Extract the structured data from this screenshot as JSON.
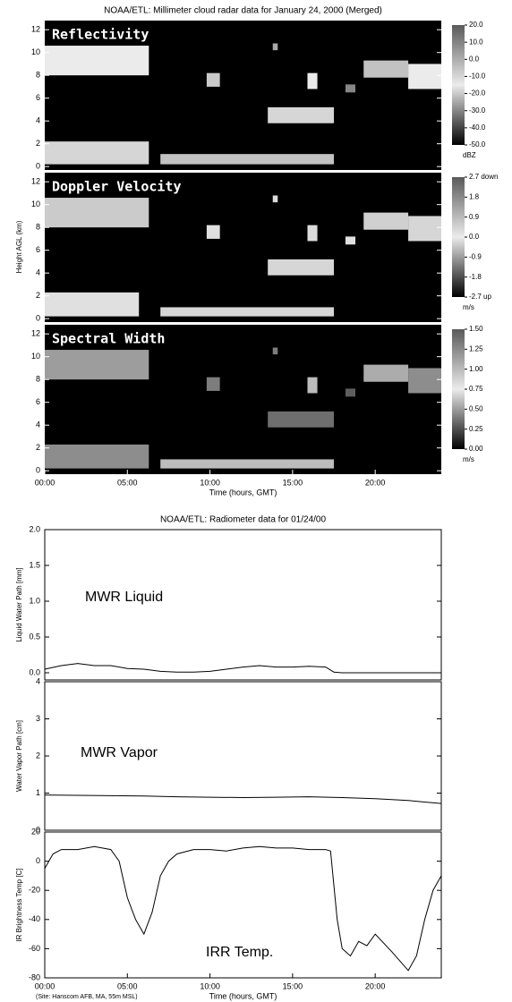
{
  "chart_data": [
    {
      "type": "radar",
      "title": "NOAA/ETL: Millimeter cloud radar data for January 24, 2000 (Merged)",
      "ylabel": "Height AGL (km)",
      "label": "Reflectivity",
      "xlim": [
        0,
        24
      ],
      "ylim": [
        -0.3,
        12.8
      ],
      "yticks": [
        0,
        2,
        4,
        6,
        8,
        10,
        12
      ],
      "colorbar": {
        "lim": [
          -50,
          20
        ],
        "unit": "dBZ",
        "ticks": [
          {
            "value": 20,
            "label": "20.0"
          },
          {
            "value": 10,
            "label": "10.0"
          },
          {
            "value": 0,
            "label": "0.0"
          },
          {
            "value": -10,
            "label": "-10.0"
          },
          {
            "value": -20,
            "label": "-20.0"
          },
          {
            "value": -30,
            "label": "-30.0"
          },
          {
            "value": -40,
            "label": "-40.0"
          },
          {
            "value": -50,
            "label": "-50.0"
          }
        ]
      },
      "regions": [
        {
          "x": [
            0,
            6.3
          ],
          "y": [
            8.0,
            10.6
          ],
          "value": -15
        },
        {
          "x": [
            0,
            6.3
          ],
          "y": [
            0.2,
            2.2
          ],
          "value": -10
        },
        {
          "x": [
            7.0,
            17.5
          ],
          "y": [
            0.2,
            1.1
          ],
          "value": -5
        },
        {
          "x": [
            9.8,
            10.6
          ],
          "y": [
            7.0,
            8.2
          ],
          "value": -20
        },
        {
          "x": [
            13.8,
            14.1
          ],
          "y": [
            10.2,
            10.8
          ],
          "value": -25
        },
        {
          "x": [
            15.9,
            16.5
          ],
          "y": [
            6.8,
            8.2
          ],
          "value": -15
        },
        {
          "x": [
            13.5,
            17.5
          ],
          "y": [
            3.8,
            5.2
          ],
          "value": -10
        },
        {
          "x": [
            18.2,
            18.8
          ],
          "y": [
            6.5,
            7.2
          ],
          "value": -30
        },
        {
          "x": [
            19.3,
            22.0
          ],
          "y": [
            7.8,
            9.3
          ],
          "value": -5
        },
        {
          "x": [
            22.0,
            24.0
          ],
          "y": [
            6.8,
            9.0
          ],
          "value": -15
        }
      ]
    },
    {
      "type": "radar",
      "label": "Doppler Velocity",
      "xlim": [
        0,
        24
      ],
      "ylim": [
        -0.3,
        12.8
      ],
      "yticks": [
        0,
        2,
        4,
        6,
        8,
        10,
        12
      ],
      "colorbar": {
        "lim": [
          -2.7,
          2.7
        ],
        "unit": "m/s",
        "ticks": [
          {
            "value": 2.7,
            "label": "2.7 down"
          },
          {
            "value": 1.8,
            "label": "1.8"
          },
          {
            "value": 0.9,
            "label": "0.9"
          },
          {
            "value": 0,
            "label": "0.0"
          },
          {
            "value": -0.9,
            "label": "-0.9"
          },
          {
            "value": -1.8,
            "label": "-1.8"
          },
          {
            "value": -2.7,
            "label": "-2.7 up"
          }
        ]
      },
      "regions": [
        {
          "x": [
            0,
            6.3
          ],
          "y": [
            8.0,
            10.6
          ],
          "value": 0.6
        },
        {
          "x": [
            0,
            5.7
          ],
          "y": [
            0.2,
            2.3
          ],
          "value": 0.2
        },
        {
          "x": [
            7.0,
            17.5
          ],
          "y": [
            0.2,
            1.0
          ],
          "value": 0.4
        },
        {
          "x": [
            9.8,
            10.6
          ],
          "y": [
            7.0,
            8.2
          ],
          "value": 0.2
        },
        {
          "x": [
            13.8,
            14.1
          ],
          "y": [
            10.2,
            10.8
          ],
          "value": 0.3
        },
        {
          "x": [
            15.9,
            16.5
          ],
          "y": [
            6.8,
            8.2
          ],
          "value": 0.3
        },
        {
          "x": [
            13.5,
            17.5
          ],
          "y": [
            3.8,
            5.2
          ],
          "value": 0.4
        },
        {
          "x": [
            18.2,
            18.8
          ],
          "y": [
            6.5,
            7.2
          ],
          "value": 0.2
        },
        {
          "x": [
            19.3,
            22.0
          ],
          "y": [
            7.8,
            9.3
          ],
          "value": 0.5
        },
        {
          "x": [
            22.0,
            24.0
          ],
          "y": [
            6.8,
            9.0
          ],
          "value": 0.4
        }
      ]
    },
    {
      "type": "radar",
      "label": "Spectral Width",
      "xlabel": "Time (hours, GMT)",
      "xlim": [
        0,
        24
      ],
      "ylim": [
        -0.3,
        12.8
      ],
      "yticks": [
        0,
        2,
        4,
        6,
        8,
        10,
        12
      ],
      "xticks": [
        {
          "value": 0,
          "label": "00:00"
        },
        {
          "value": 5,
          "label": "05:00"
        },
        {
          "value": 10,
          "label": "10:00"
        },
        {
          "value": 15,
          "label": "15:00"
        },
        {
          "value": 20,
          "label": "20:00"
        }
      ],
      "colorbar": {
        "lim": [
          0,
          1.5
        ],
        "unit": "m/s",
        "ticks": [
          {
            "value": 1.5,
            "label": "1.50"
          },
          {
            "value": 1.25,
            "label": "1.25"
          },
          {
            "value": 1.0,
            "label": "1.00"
          },
          {
            "value": 0.75,
            "label": "0.75"
          },
          {
            "value": 0.5,
            "label": "0.50"
          },
          {
            "value": 0.25,
            "label": "0.25"
          },
          {
            "value": 0,
            "label": "0.00"
          }
        ]
      },
      "regions": [
        {
          "x": [
            0,
            6.3
          ],
          "y": [
            8.0,
            10.6
          ],
          "value": 0.5
        },
        {
          "x": [
            0,
            6.3
          ],
          "y": [
            0.2,
            2.3
          ],
          "value": 0.45
        },
        {
          "x": [
            7.0,
            17.5
          ],
          "y": [
            0.2,
            1.0
          ],
          "value": 0.6
        },
        {
          "x": [
            9.8,
            10.6
          ],
          "y": [
            7.0,
            8.2
          ],
          "value": 0.4
        },
        {
          "x": [
            13.8,
            14.1
          ],
          "y": [
            10.2,
            10.8
          ],
          "value": 0.4
        },
        {
          "x": [
            15.9,
            16.5
          ],
          "y": [
            6.8,
            8.2
          ],
          "value": 0.6
        },
        {
          "x": [
            13.5,
            17.5
          ],
          "y": [
            3.8,
            5.2
          ],
          "value": 0.35
        },
        {
          "x": [
            18.2,
            18.8
          ],
          "y": [
            6.5,
            7.2
          ],
          "value": 0.3
        },
        {
          "x": [
            19.3,
            22.0
          ],
          "y": [
            7.8,
            9.3
          ],
          "value": 0.55
        },
        {
          "x": [
            22.0,
            24.0
          ],
          "y": [
            6.8,
            9.0
          ],
          "value": 0.45
        }
      ]
    },
    {
      "type": "line",
      "title": "NOAA/ETL: Radiometer data for 01/24/00",
      "ylabel": "Liquid Water Path [mm]",
      "annotation": "MWR Liquid",
      "xlim": [
        0,
        24
      ],
      "ylim": [
        -0.1,
        2.0
      ],
      "yticks": [
        {
          "value": 0,
          "label": "0.0"
        },
        {
          "value": 0.5,
          "label": "0.5"
        },
        {
          "value": 1.0,
          "label": "1.0"
        },
        {
          "value": 1.5,
          "label": "1.5"
        },
        {
          "value": 2.0,
          "label": "2.0"
        }
      ],
      "x": [
        0,
        1,
        2,
        3,
        4,
        5,
        6,
        7,
        8,
        9,
        10,
        11,
        12,
        13,
        14,
        15,
        16,
        17,
        17.5,
        18,
        20,
        22,
        24
      ],
      "values": [
        0.05,
        0.1,
        0.13,
        0.1,
        0.1,
        0.06,
        0.05,
        0.02,
        0.01,
        0.01,
        0.02,
        0.05,
        0.08,
        0.1,
        0.08,
        0.08,
        0.09,
        0.08,
        0.01,
        0,
        0,
        0,
        0
      ]
    },
    {
      "type": "line",
      "ylabel": "Water Vapor Path [cm]",
      "annotation": "MWR Vapor",
      "xlim": [
        0,
        24
      ],
      "ylim": [
        0,
        4
      ],
      "yticks": [
        0,
        1,
        2,
        3,
        4
      ],
      "x": [
        0,
        2,
        4,
        6,
        8,
        10,
        12,
        14,
        16,
        18,
        20,
        22,
        23,
        24
      ],
      "values": [
        0.95,
        0.94,
        0.93,
        0.92,
        0.9,
        0.89,
        0.88,
        0.89,
        0.9,
        0.88,
        0.85,
        0.8,
        0.76,
        0.72
      ]
    },
    {
      "type": "line",
      "ylabel": "IR Brightness Temp [C]",
      "annotation": "IRR Temp.",
      "xlabel": "Time (hours, GMT)",
      "note": "(Site: Hanscom AFB, MA, 55m MSL)",
      "xlim": [
        0,
        24
      ],
      "ylim": [
        -80,
        20
      ],
      "yticks": [
        -80,
        -60,
        -40,
        -20,
        0,
        20
      ],
      "xticks": [
        {
          "value": 0,
          "label": "00:00"
        },
        {
          "value": 5,
          "label": "05:00"
        },
        {
          "value": 10,
          "label": "10:00"
        },
        {
          "value": 15,
          "label": "15:00"
        },
        {
          "value": 20,
          "label": "20:00"
        }
      ],
      "x": [
        0,
        0.5,
        1,
        2,
        3,
        4,
        4.5,
        5,
        5.5,
        6,
        6.5,
        7,
        7.5,
        8,
        9,
        10,
        11,
        12,
        13,
        14,
        15,
        16,
        17,
        17.3,
        17.7,
        18,
        18.5,
        19,
        19.5,
        20,
        21,
        22,
        22.5,
        23,
        23.5,
        24
      ],
      "values": [
        -5,
        5,
        8,
        8,
        10,
        8,
        0,
        -25,
        -40,
        -50,
        -35,
        -10,
        0,
        5,
        8,
        8,
        7,
        9,
        10,
        9,
        9,
        8,
        8,
        7,
        -40,
        -60,
        -65,
        -55,
        -58,
        -50,
        -62,
        -75,
        -65,
        -40,
        -20,
        -10
      ]
    }
  ]
}
